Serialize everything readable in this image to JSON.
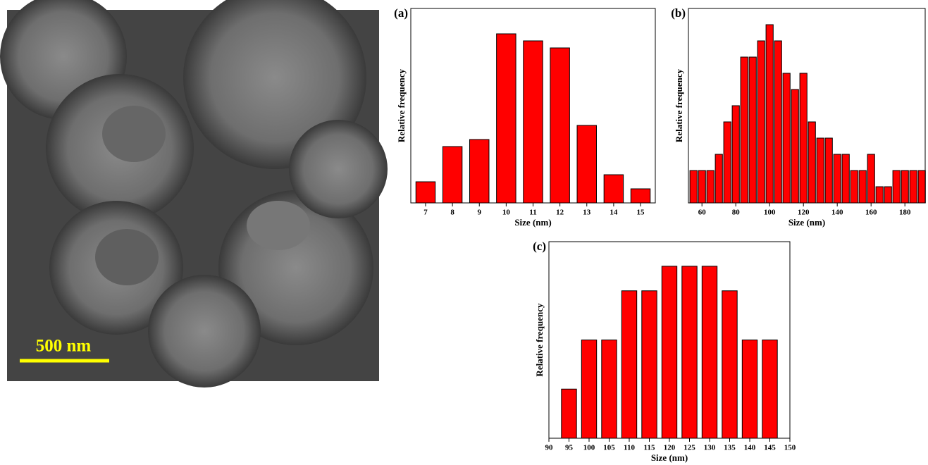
{
  "image": {
    "scale_label": "500 nm"
  },
  "chart_data": [
    {
      "type": "bar",
      "label": "(a)",
      "x_label": "Size (nm)",
      "y_label": "Relative frequency",
      "color": "#ff0000",
      "x": [
        7,
        8,
        9,
        10,
        11,
        12,
        13,
        14,
        15
      ],
      "values": [
        3,
        8,
        9,
        24,
        23,
        22,
        11,
        4,
        2
      ],
      "xlim": [
        6.45,
        15.55
      ],
      "xticks": [
        7,
        8,
        9,
        10,
        11,
        12,
        13,
        14,
        15
      ],
      "ylim": [
        0,
        27.6
      ]
    },
    {
      "type": "bar",
      "label": "(b)",
      "x_label": "Size (nm)",
      "y_label": "Relative frequency",
      "color": "#ff0000",
      "x": [
        55,
        60,
        65,
        70,
        75,
        80,
        85,
        90,
        95,
        100,
        105,
        110,
        115,
        120,
        125,
        130,
        135,
        140,
        145,
        150,
        155,
        160,
        165,
        170,
        175,
        180,
        185,
        190
      ],
      "values": [
        2,
        2,
        2,
        3,
        5,
        6,
        9,
        9,
        10,
        11,
        10,
        8,
        7,
        8,
        5,
        4,
        4,
        3,
        3,
        2,
        2,
        3,
        1,
        1,
        2,
        2,
        2,
        2
      ],
      "xlim": [
        52,
        192
      ],
      "xticks": [
        60,
        80,
        100,
        120,
        140,
        160,
        180
      ],
      "ylim": [
        0,
        12
      ]
    },
    {
      "type": "bar",
      "label": "(c)",
      "x_label": "Size (nm)",
      "y_label": "Relative frequency",
      "color": "#ff0000",
      "x": [
        95,
        100,
        105,
        110,
        115,
        120,
        125,
        130,
        135,
        140,
        145
      ],
      "values": [
        2,
        4,
        4,
        6,
        6,
        7,
        7,
        7,
        6,
        4,
        4
      ],
      "xlim": [
        90,
        150
      ],
      "xticks": [
        90,
        95,
        100,
        105,
        110,
        115,
        120,
        125,
        130,
        135,
        140,
        145,
        150
      ],
      "ylim": [
        0,
        8
      ]
    }
  ]
}
